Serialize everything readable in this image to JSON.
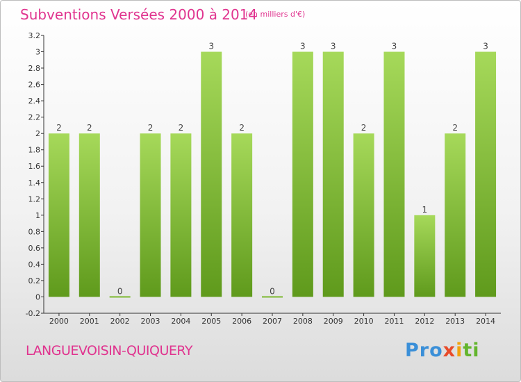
{
  "chart_data": {
    "type": "bar",
    "title": "Subventions Versées 2000 à 2014",
    "subtitle": "(en milliers d'€)",
    "categories": [
      "2000",
      "2001",
      "2002",
      "2003",
      "2004",
      "2005",
      "2006",
      "2007",
      "2008",
      "2009",
      "2010",
      "2011",
      "2012",
      "2013",
      "2014"
    ],
    "values": [
      2,
      2,
      0,
      2,
      2,
      3,
      2,
      0,
      3,
      3,
      2,
      3,
      1,
      2,
      3
    ],
    "value_labels": [
      "2",
      "2",
      "0",
      "2",
      "2",
      "3",
      "2",
      "0",
      "3",
      "3",
      "2",
      "3",
      "1",
      "2",
      "3"
    ],
    "ylim": [
      -0.2,
      3.2
    ],
    "yticks": [
      "-0.2",
      "0",
      "0.2",
      "0.4",
      "0.6",
      "0.8",
      "1",
      "1.2",
      "1.4",
      "1.6",
      "1.8",
      "2",
      "2.2",
      "2.4",
      "2.6",
      "2.8",
      "3",
      "3.2"
    ],
    "ytick_values": [
      -0.2,
      0,
      0.2,
      0.4,
      0.6,
      0.8,
      1,
      1.2,
      1.4,
      1.6,
      1.8,
      2,
      2.2,
      2.4,
      2.6,
      2.8,
      3,
      3.2
    ],
    "grid": false,
    "bar_color": "#7cb82f",
    "bar_color_light": "#a6d95a"
  },
  "footer": {
    "commune": "LANGUEVOISIN-QUIQUERY",
    "logo": {
      "p1": "Pro",
      "p2": "x",
      "p3": "i",
      "p4": "ti"
    }
  },
  "colors": {
    "accent": "#e0348f"
  }
}
